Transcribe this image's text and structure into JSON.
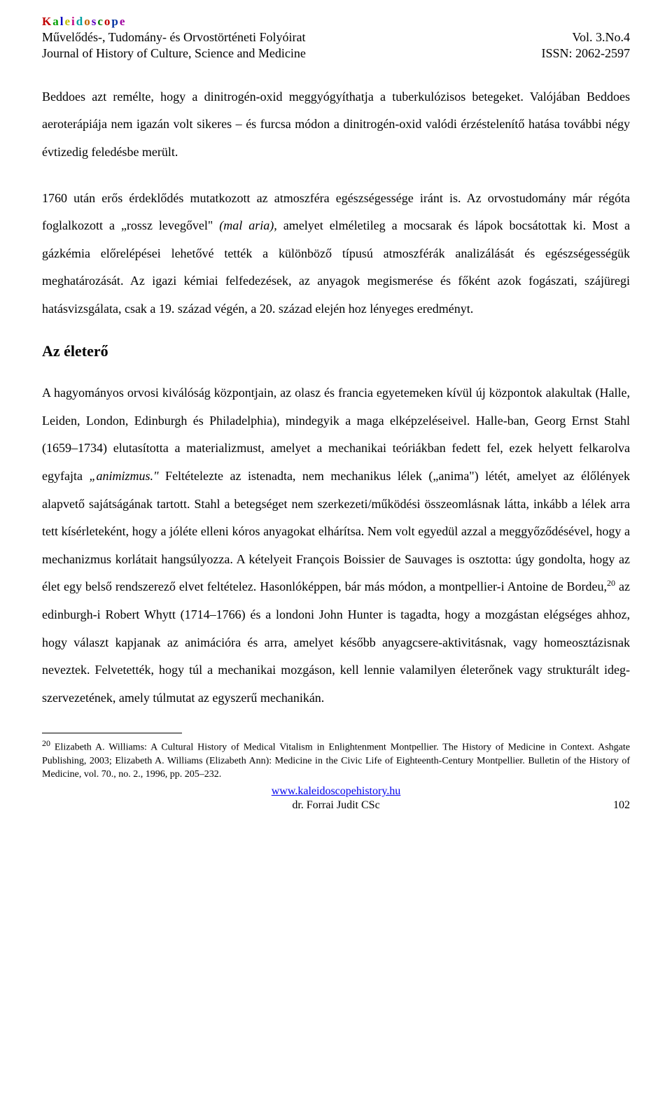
{
  "header": {
    "kaleidoscope_letters": [
      "K",
      "a",
      "l",
      "e",
      "i",
      "d",
      "o",
      "s",
      "c",
      "o",
      "p",
      "e"
    ],
    "hu_title": "Művelődés-, Tudomány- és Orvostörténeti Folyóirat",
    "en_title": "Journal of History of Culture, Science and Medicine",
    "vol": "Vol. 3.No.4",
    "issn_label": "ISSN:",
    "issn_value": "2062-2597"
  },
  "paragraphs": {
    "p1": "Beddoes azt remélte, hogy a dinitrogén-oxid meggyógyíthatja a tuberkulózisos betegeket. Valójában Beddoes aeroterápiája nem igazán volt sikeres – és furcsa módon a dinitrogén-oxid valódi érzéstelenítő hatása további négy évtizedig feledésbe merült.",
    "p2_a": "1760 után erős érdeklődés mutatkozott az atmoszféra egészségessége iránt is. Az orvostudomány már régóta foglalkozott a „rossz levegővel\" ",
    "p2_i": "(mal aria),",
    "p2_b": " amelyet elméletileg a mocsarak és lápok bocsátottak ki. Most a gázkémia előrelépései lehetővé tették a különböző típusú atmoszférák analizálását és egészségességük meghatározását. Az igazi kémiai felfedezések, az anyagok megismerése és főként azok fogászati, szájüregi hatásvizsgálata, csak a 19. század végén, a 20. század elején hoz lényeges eredményt."
  },
  "section_title": "Az életerő",
  "p3": {
    "a": "A hagyományos orvosi kiválóság központjain, az olasz és francia egyetemeken kívül új központok alakultak (Halle, Leiden, London, Edinburgh és Philadelphia), mindegyik a maga elképzeléseivel. Halle-ban, Georg Ernst Stahl (1659–1734) elutasította a materializmust, amelyet a mechanikai teóriákban fedett fel, ezek helyett felkarolva egyfajta ",
    "i1": "„animizmus.\"",
    "b": " Feltételezte az istenadta, nem mechanikus lélek („anima\") létét, amelyet az élőlények alapvető sajátságának tartott. Stahl a betegséget nem szerkezeti/működési összeomlásnak látta, inkább a lélek arra tett kísérleteként, hogy a jóléte elleni kóros anyagokat elhárítsa. Nem volt egyedül azzal a meggyőződésével, hogy a mechanizmus korlátait hangsúlyozza. A kételyeit François Boissier de Sauvages is osztotta: úgy gondolta, hogy az élet egy belső rendszerező elvet feltételez. Hasonlóképpen, bár más módon, a montpellier-i Antoine de Bordeu,",
    "c": " az edinburgh-i Robert Whytt (1714–1766) és a londoni John Hunter is tagadta, hogy a mozgástan elégséges ahhoz, hogy választ kapjanak az animációra és arra, amelyet később anyagcsere-aktivitásnak, vagy homeosztázisnak neveztek. Felvetették, hogy túl a mechanikai mozgáson, kell lennie valamilyen életerőnek vagy strukturált ideg-szervezetének, amely túlmutat az egyszerű mechanikán."
  },
  "footnote": {
    "num": "20",
    "text": " Elizabeth A. Williams: A Cultural History of Medical Vitalism in Enlightenment Montpellier. The History of Medicine in Context. Ashgate Publishing, 2003; Elizabeth A. Williams (Elizabeth Ann): Medicine in the Civic Life of Eighteenth-Century Montpellier. Bulletin of the History of Medicine, vol. 70., no. 2., 1996, pp. 205–232."
  },
  "footer": {
    "link": "www.kaleidoscopehistory.hu",
    "author": "dr. Forrai Judit CSc",
    "page": "102"
  }
}
